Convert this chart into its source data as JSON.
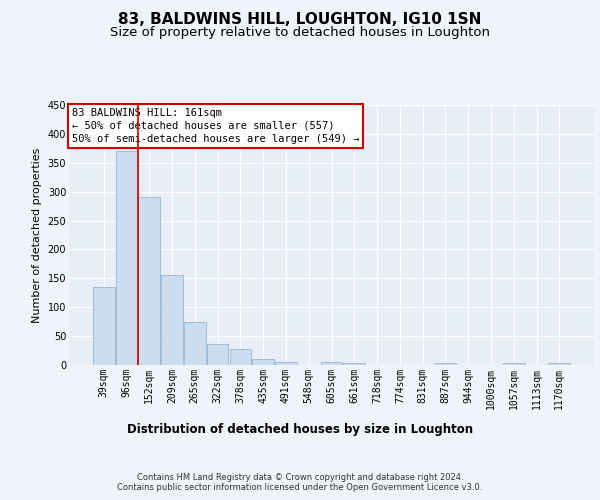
{
  "title1": "83, BALDWINS HILL, LOUGHTON, IG10 1SN",
  "title2": "Size of property relative to detached houses in Loughton",
  "xlabel": "Distribution of detached houses by size in Loughton",
  "ylabel": "Number of detached properties",
  "categories": [
    "39sqm",
    "96sqm",
    "152sqm",
    "209sqm",
    "265sqm",
    "322sqm",
    "378sqm",
    "435sqm",
    "491sqm",
    "548sqm",
    "605sqm",
    "661sqm",
    "718sqm",
    "774sqm",
    "831sqm",
    "887sqm",
    "944sqm",
    "1000sqm",
    "1057sqm",
    "1113sqm",
    "1170sqm"
  ],
  "values": [
    135,
    370,
    290,
    155,
    75,
    37,
    27,
    10,
    6,
    0,
    5,
    4,
    0,
    0,
    0,
    4,
    0,
    0,
    3,
    0,
    3
  ],
  "bar_color": "#ccddf0",
  "bar_edge_color": "#88aacc",
  "background_color": "#e8eef8",
  "grid_color": "#ffffff",
  "vline_color": "#cc0000",
  "vline_x": 1.5,
  "annotation_text": "83 BALDWINS HILL: 161sqm\n← 50% of detached houses are smaller (557)\n50% of semi-detached houses are larger (549) →",
  "annotation_box_facecolor": "#ffffff",
  "annotation_box_edgecolor": "#cc0000",
  "ylim": [
    0,
    450
  ],
  "yticks": [
    0,
    50,
    100,
    150,
    200,
    250,
    300,
    350,
    400,
    450
  ],
  "footnote": "Contains HM Land Registry data © Crown copyright and database right 2024.\nContains public sector information licensed under the Open Government Licence v3.0.",
  "title1_fontsize": 11,
  "title2_fontsize": 9.5,
  "xlabel_fontsize": 8.5,
  "ylabel_fontsize": 8,
  "tick_fontsize": 7,
  "annotation_fontsize": 7.5,
  "footnote_fontsize": 6
}
